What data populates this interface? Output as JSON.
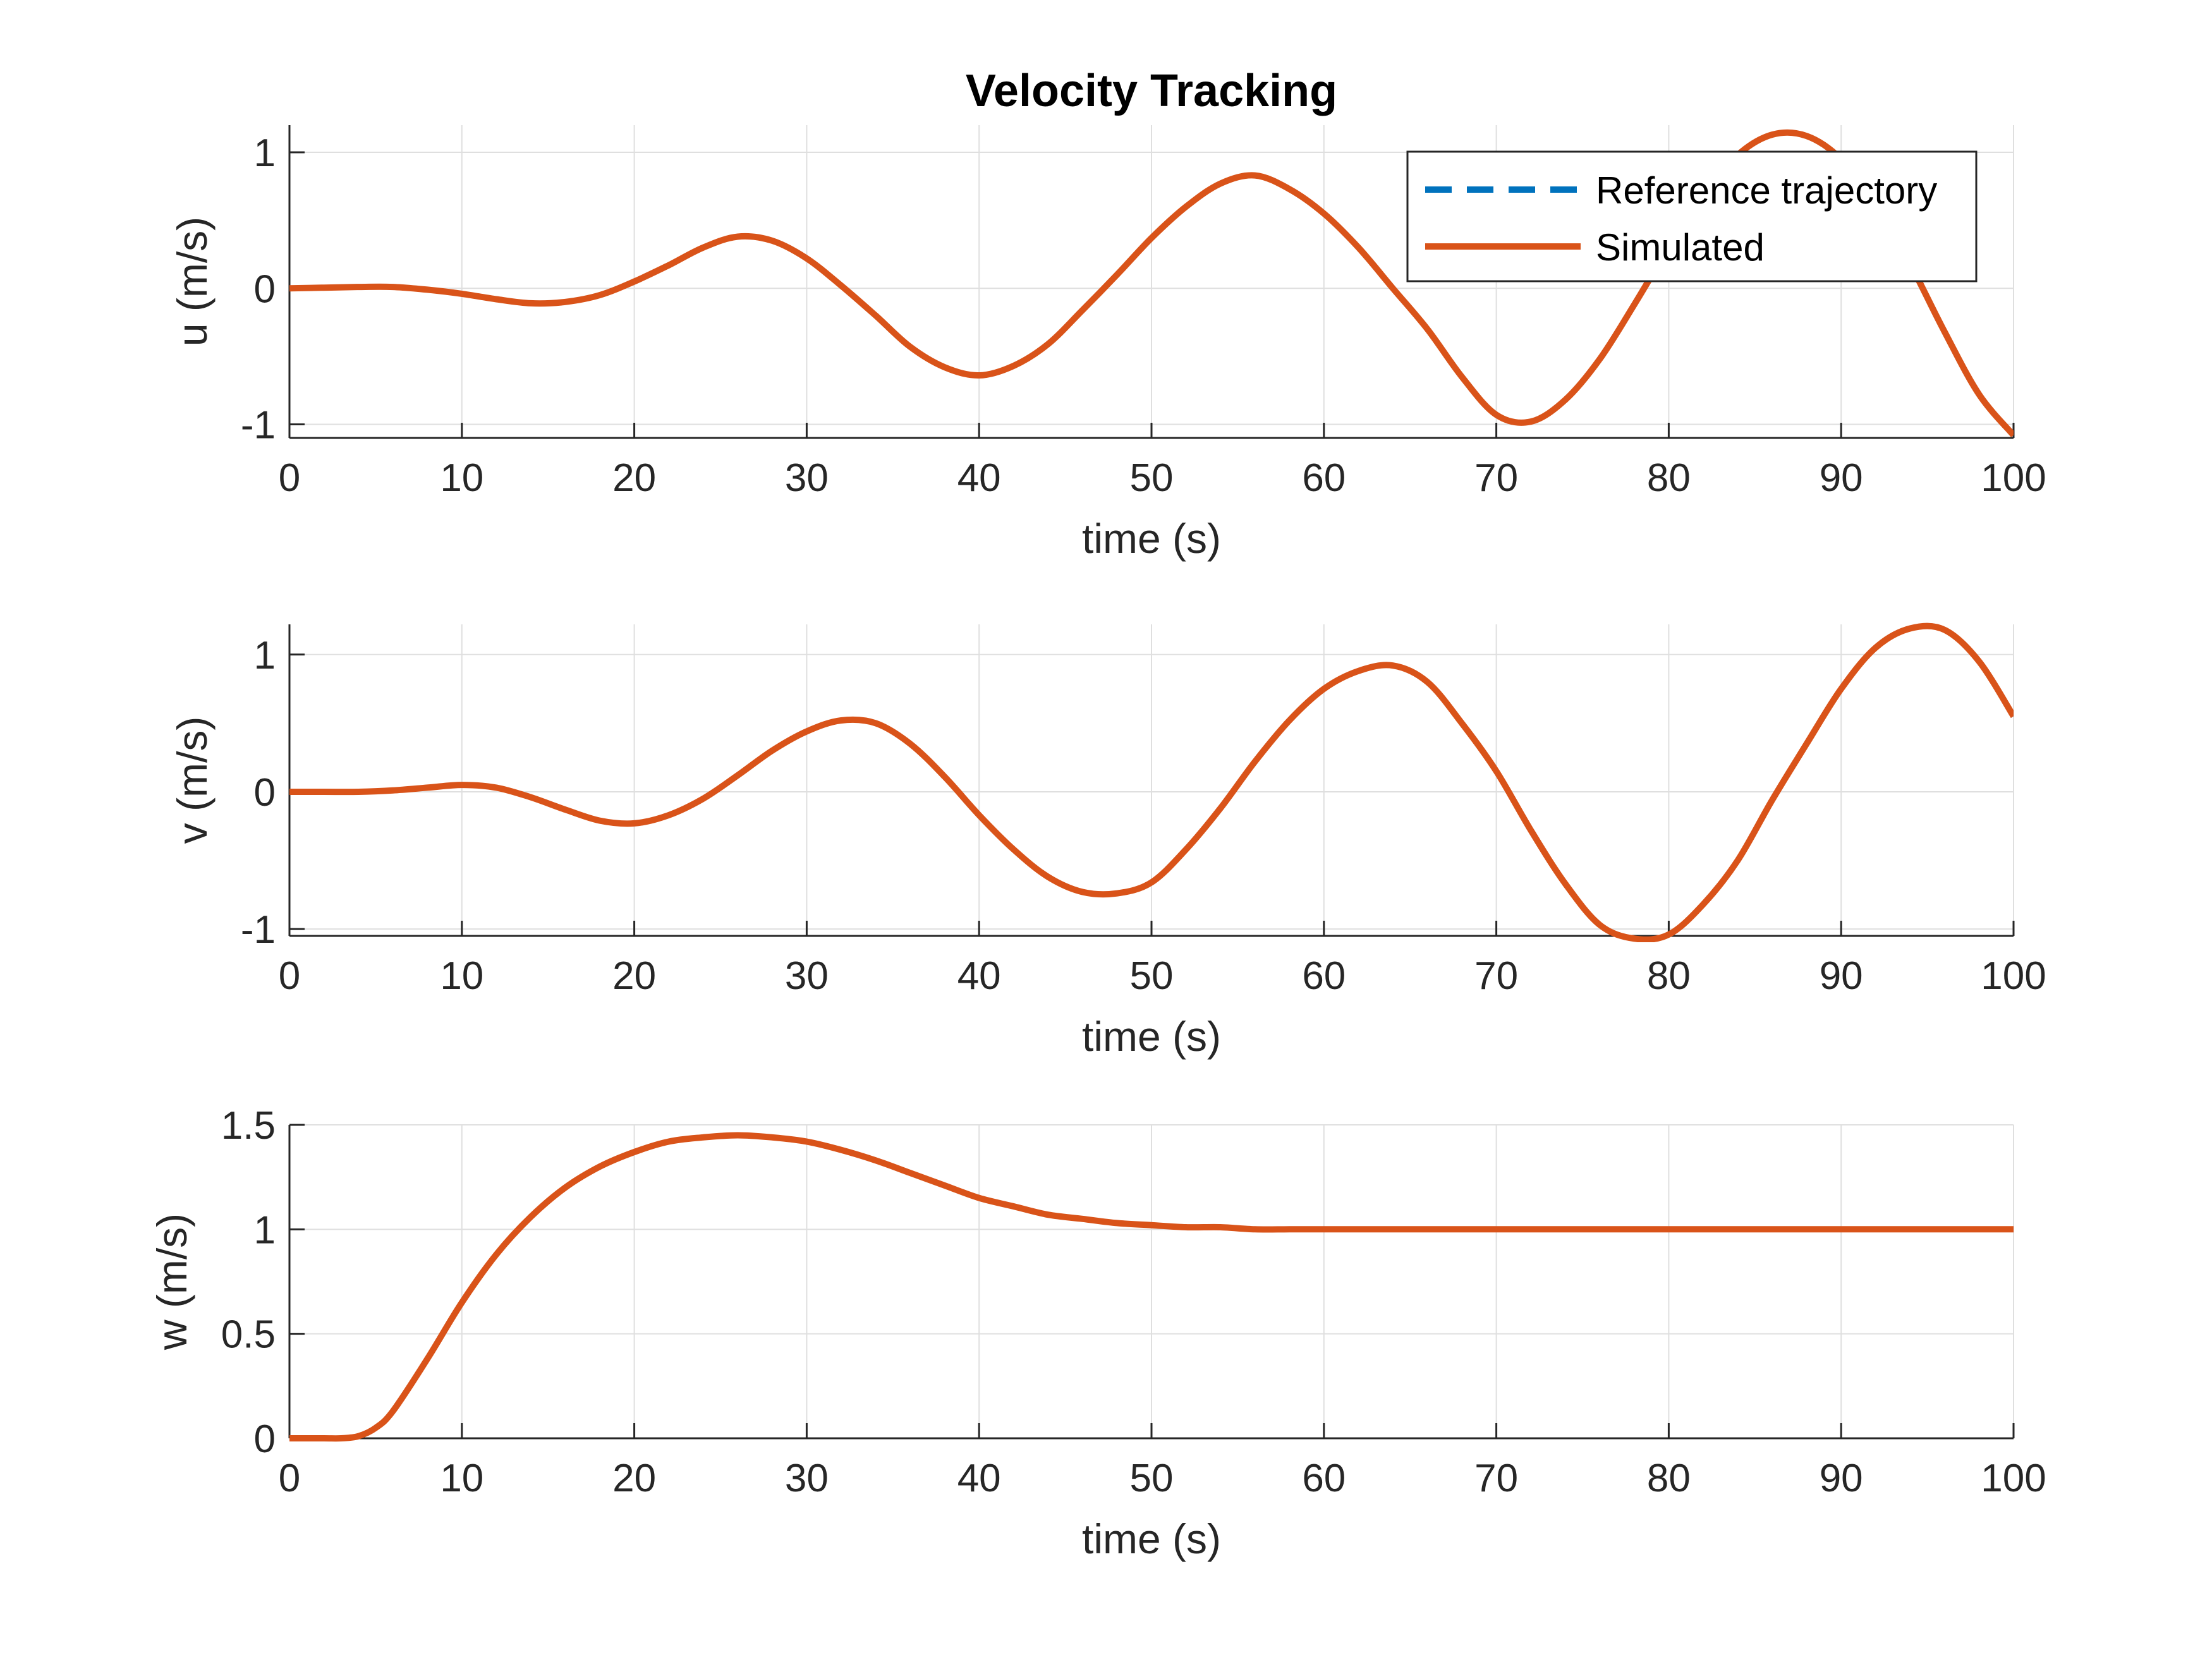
{
  "figure_title": "Velocity Tracking",
  "colors": {
    "reference": "#0072BD",
    "simulated": "#D95319",
    "axis": "#262626",
    "grid": "#DFDFDF",
    "legend_border": "#262626",
    "background": "#FFFFFF"
  },
  "legend": {
    "placement": "top-right of first subplot",
    "entries": [
      {
        "label": "Reference trajectory",
        "style": "dashed",
        "color": "#0072BD"
      },
      {
        "label": "Simulated",
        "style": "solid",
        "color": "#D95319"
      }
    ]
  },
  "chart_data": [
    {
      "type": "line",
      "title": "Velocity Tracking",
      "xlabel": "time (s)",
      "ylabel": "u (m/s)",
      "xlim": [
        0,
        100
      ],
      "ylim": [
        -1.1,
        1.2
      ],
      "grid": true,
      "xticks": [
        0,
        10,
        20,
        30,
        40,
        50,
        60,
        70,
        80,
        90,
        100
      ],
      "xtick_labels": [
        "0",
        "10",
        "20",
        "30",
        "40",
        "50",
        "60",
        "70",
        "80",
        "90",
        "100"
      ],
      "yticks": [
        -1,
        0,
        1
      ],
      "ytick_labels": [
        "-1",
        "0",
        "1"
      ],
      "legend": true,
      "x": [
        0,
        2,
        4,
        6,
        8,
        10,
        12,
        14,
        16,
        18,
        20,
        22,
        24,
        26,
        28,
        30,
        32,
        34,
        36,
        38,
        40,
        42,
        44,
        46,
        48,
        50,
        52,
        54,
        56,
        58,
        60,
        62,
        64,
        66,
        68,
        70,
        72,
        74,
        76,
        78,
        80,
        82,
        84,
        86,
        88,
        90,
        92,
        94,
        96,
        98,
        100
      ],
      "series": [
        {
          "name": "Reference trajectory",
          "values": [
            0.0,
            0.005,
            0.01,
            0.01,
            -0.01,
            -0.04,
            -0.08,
            -0.11,
            -0.1,
            -0.05,
            0.05,
            0.17,
            0.3,
            0.38,
            0.35,
            0.22,
            0.02,
            -0.2,
            -0.43,
            -0.58,
            -0.64,
            -0.57,
            -0.41,
            -0.16,
            0.1,
            0.37,
            0.6,
            0.77,
            0.83,
            0.73,
            0.55,
            0.3,
            0.0,
            -0.3,
            -0.65,
            -0.93,
            -0.98,
            -0.82,
            -0.52,
            -0.12,
            0.3,
            0.68,
            0.98,
            1.13,
            1.12,
            0.95,
            0.62,
            0.18,
            -0.32,
            -0.78,
            -1.08
          ]
        },
        {
          "name": "Simulated",
          "values": [
            0.0,
            0.005,
            0.01,
            0.01,
            -0.01,
            -0.04,
            -0.08,
            -0.11,
            -0.1,
            -0.05,
            0.05,
            0.17,
            0.3,
            0.38,
            0.35,
            0.22,
            0.02,
            -0.2,
            -0.43,
            -0.58,
            -0.64,
            -0.57,
            -0.41,
            -0.16,
            0.1,
            0.37,
            0.6,
            0.77,
            0.83,
            0.73,
            0.55,
            0.3,
            0.0,
            -0.3,
            -0.65,
            -0.93,
            -0.98,
            -0.82,
            -0.52,
            -0.12,
            0.3,
            0.68,
            0.98,
            1.13,
            1.12,
            0.95,
            0.62,
            0.18,
            -0.32,
            -0.78,
            -1.08
          ]
        }
      ]
    },
    {
      "type": "line",
      "xlabel": "time (s)",
      "ylabel": "v (m/s)",
      "xlim": [
        0,
        100
      ],
      "ylim": [
        -1.05,
        1.22
      ],
      "grid": true,
      "xticks": [
        0,
        10,
        20,
        30,
        40,
        50,
        60,
        70,
        80,
        90,
        100
      ],
      "xtick_labels": [
        "0",
        "10",
        "20",
        "30",
        "40",
        "50",
        "60",
        "70",
        "80",
        "90",
        "100"
      ],
      "yticks": [
        -1,
        0,
        1
      ],
      "ytick_labels": [
        "-1",
        "0",
        "1"
      ],
      "legend": false,
      "x": [
        0,
        2,
        4,
        6,
        8,
        10,
        12,
        14,
        16,
        18,
        20,
        22,
        24,
        26,
        28,
        30,
        32,
        34,
        36,
        38,
        40,
        42,
        44,
        46,
        48,
        50,
        52,
        54,
        56,
        58,
        60,
        62,
        64,
        66,
        68,
        70,
        72,
        74,
        76,
        78,
        80,
        82,
        84,
        86,
        88,
        90,
        92,
        94,
        96,
        98,
        100
      ],
      "series": [
        {
          "name": "Reference trajectory",
          "values": [
            0.0,
            0.0,
            0.0,
            0.01,
            0.03,
            0.05,
            0.03,
            -0.04,
            -0.13,
            -0.21,
            -0.23,
            -0.17,
            -0.05,
            0.12,
            0.3,
            0.44,
            0.52,
            0.5,
            0.35,
            0.11,
            -0.17,
            -0.42,
            -0.62,
            -0.73,
            -0.74,
            -0.66,
            -0.42,
            -0.12,
            0.22,
            0.52,
            0.75,
            0.88,
            0.92,
            0.8,
            0.5,
            0.15,
            -0.28,
            -0.67,
            -0.97,
            -1.07,
            -1.04,
            -0.82,
            -0.5,
            -0.06,
            0.35,
            0.75,
            1.05,
            1.19,
            1.18,
            0.95,
            0.55
          ]
        },
        {
          "name": "Simulated",
          "values": [
            0.0,
            0.0,
            0.0,
            0.01,
            0.03,
            0.05,
            0.03,
            -0.04,
            -0.13,
            -0.21,
            -0.23,
            -0.17,
            -0.05,
            0.12,
            0.3,
            0.44,
            0.52,
            0.5,
            0.35,
            0.11,
            -0.17,
            -0.42,
            -0.62,
            -0.73,
            -0.74,
            -0.66,
            -0.42,
            -0.12,
            0.22,
            0.52,
            0.75,
            0.88,
            0.92,
            0.8,
            0.5,
            0.15,
            -0.28,
            -0.67,
            -0.97,
            -1.07,
            -1.04,
            -0.82,
            -0.5,
            -0.06,
            0.35,
            0.75,
            1.05,
            1.19,
            1.18,
            0.95,
            0.55
          ]
        }
      ]
    },
    {
      "type": "line",
      "xlabel": "time (s)",
      "ylabel": "w (m/s)",
      "xlim": [
        0,
        100
      ],
      "ylim": [
        0,
        1.5
      ],
      "grid": true,
      "xticks": [
        0,
        10,
        20,
        30,
        40,
        50,
        60,
        70,
        80,
        90,
        100
      ],
      "xtick_labels": [
        "0",
        "10",
        "20",
        "30",
        "40",
        "50",
        "60",
        "70",
        "80",
        "90",
        "100"
      ],
      "yticks": [
        0,
        0.5,
        1,
        1.5
      ],
      "ytick_labels": [
        "0",
        "0.5",
        "1",
        "1.5"
      ],
      "legend": false,
      "x": [
        0,
        2,
        3,
        4,
        5,
        6,
        8,
        10,
        12,
        14,
        16,
        18,
        20,
        22,
        24,
        26,
        28,
        30,
        32,
        34,
        36,
        38,
        40,
        42,
        44,
        46,
        48,
        50,
        52,
        54,
        56,
        58,
        60,
        65,
        70,
        80,
        90,
        100
      ],
      "series": [
        {
          "name": "Reference trajectory",
          "values": [
            0.0,
            0.0,
            0.0,
            0.01,
            0.05,
            0.13,
            0.38,
            0.65,
            0.88,
            1.06,
            1.2,
            1.3,
            1.37,
            1.42,
            1.44,
            1.45,
            1.44,
            1.42,
            1.38,
            1.33,
            1.27,
            1.21,
            1.15,
            1.11,
            1.07,
            1.05,
            1.03,
            1.02,
            1.01,
            1.01,
            1.0,
            1.0,
            1.0,
            1.0,
            1.0,
            1.0,
            1.0,
            1.0
          ]
        },
        {
          "name": "Simulated",
          "values": [
            0.0,
            0.0,
            0.0,
            0.01,
            0.05,
            0.13,
            0.38,
            0.65,
            0.88,
            1.06,
            1.2,
            1.3,
            1.37,
            1.42,
            1.44,
            1.45,
            1.44,
            1.42,
            1.38,
            1.33,
            1.27,
            1.21,
            1.15,
            1.11,
            1.07,
            1.05,
            1.03,
            1.02,
            1.01,
            1.01,
            1.0,
            1.0,
            1.0,
            1.0,
            1.0,
            1.0,
            1.0,
            1.0
          ]
        }
      ]
    }
  ]
}
